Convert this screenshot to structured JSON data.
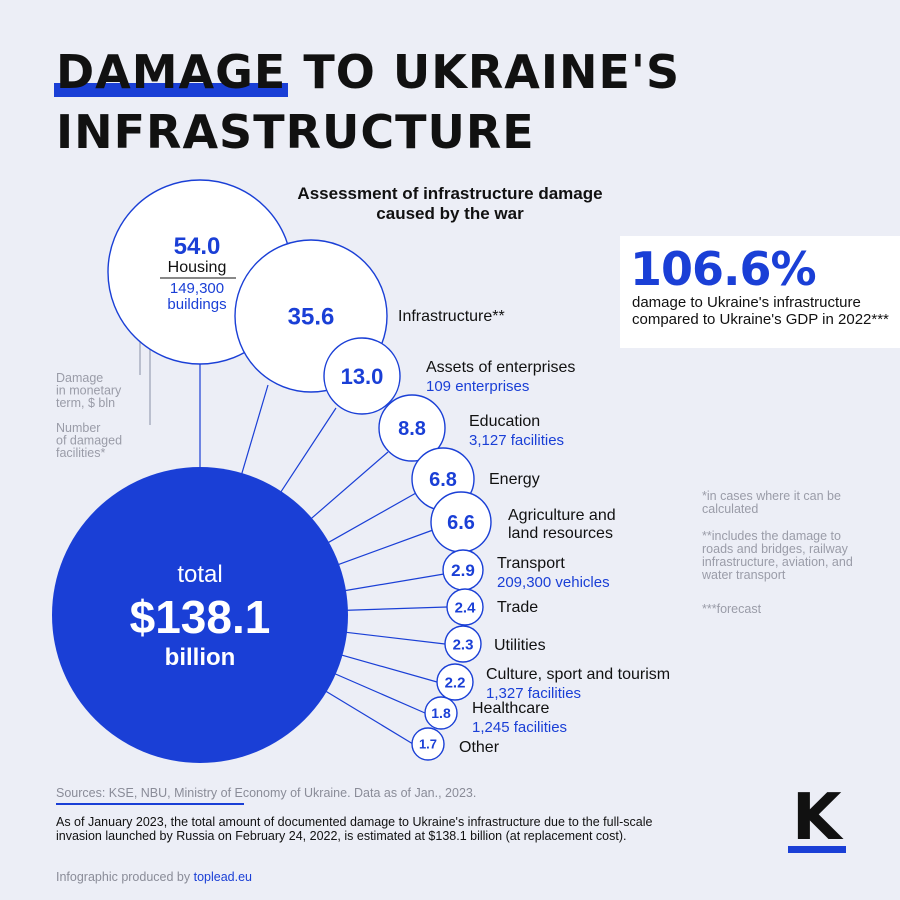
{
  "header": {
    "title_highlight": "DAMAGE",
    "title_rest": " TO UKRAINE'S",
    "title_line2": "INFRASTRUCTURE"
  },
  "subtitle": "Assessment of infrastructure damage caused by the war",
  "legend": {
    "monetary": "Damage in monetary term, $ bln",
    "facilities": "Number of damaged facilities*"
  },
  "chart_data": {
    "type": "bubble",
    "unit": "$ bln",
    "total": {
      "prefix": "total",
      "value": "$138.1",
      "suffix": "billion"
    },
    "categories": [
      {
        "name": "Housing",
        "value": 54.0,
        "label": "54.0",
        "facilities": "149,300 buildings"
      },
      {
        "name": "Infrastructure**",
        "value": 35.6,
        "label": "35.6",
        "facilities": ""
      },
      {
        "name": "Assets of enterprises",
        "value": 13.0,
        "label": "13.0",
        "facilities": "109 enterprises"
      },
      {
        "name": "Education",
        "value": 8.8,
        "label": "8.8",
        "facilities": "3,127 facilities"
      },
      {
        "name": "Energy",
        "value": 6.8,
        "label": "6.8",
        "facilities": ""
      },
      {
        "name": "Agriculture and land resources",
        "value": 6.6,
        "label": "6.6",
        "facilities": ""
      },
      {
        "name": "Transport",
        "value": 2.9,
        "label": "2.9",
        "facilities": "209,300 vehicles"
      },
      {
        "name": "Trade",
        "value": 2.4,
        "label": "2.4",
        "facilities": ""
      },
      {
        "name": "Utilities",
        "value": 2.3,
        "label": "2.3",
        "facilities": ""
      },
      {
        "name": "Culture, sport and tourism",
        "value": 2.2,
        "label": "2.2",
        "facilities": "1,327 facilities"
      },
      {
        "name": "Healthcare",
        "value": 1.8,
        "label": "1.8",
        "facilities": "1,245 facilities"
      },
      {
        "name": "Other",
        "value": 1.7,
        "label": "1.7",
        "facilities": ""
      }
    ]
  },
  "gdp": {
    "value": "106.6%",
    "description": "damage to Ukraine's infrastructure compared to Ukraine's GDP in 2022***"
  },
  "notes": [
    "*in cases where it can be calculated",
    "**includes the damage to roads and bridges, railway infrastructure, aviation, and water transport",
    "***forecast"
  ],
  "footer": {
    "sources": "Sources: KSE, NBU, Ministry of Economy of Ukraine. Data as of Jan., 2023.",
    "description": "As of January 2023, the total amount of documented damage to Ukraine's infrastructure due to the full-scale invasion launched by Russia on February 24, 2022, is estimated at $138.1 billion (at replacement cost).",
    "credit_prefix": "Infographic produced by ",
    "credit_brand": "toplead.eu"
  },
  "logo": {
    "letter": "K"
  },
  "colors": {
    "accent": "#1a3fd6",
    "background": "#eceef6",
    "text": "#111111",
    "muted": "#9a9ca8"
  }
}
